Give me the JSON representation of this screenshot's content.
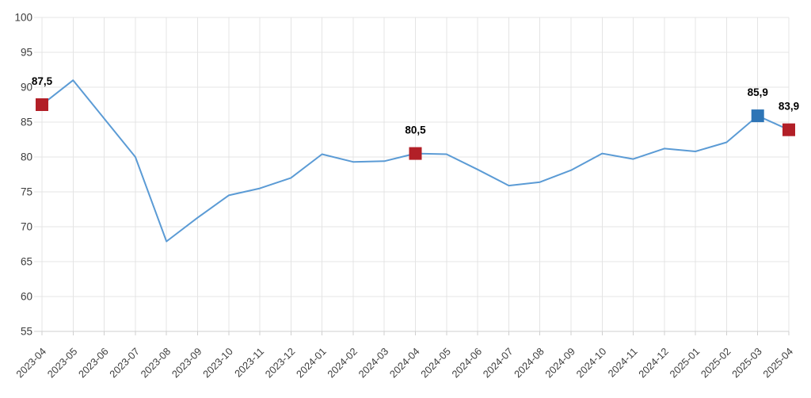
{
  "chart_data": {
    "type": "line",
    "title": "",
    "xlabel": "",
    "ylabel": "",
    "x": [
      "2023-04",
      "2023-05",
      "2023-06",
      "2023-07",
      "2023-08",
      "2023-09",
      "2023-10",
      "2023-11",
      "2023-12",
      "2024-01",
      "2024-02",
      "2024-03",
      "2024-04",
      "2024-05",
      "2024-06",
      "2024-07",
      "2024-08",
      "2024-09",
      "2024-10",
      "2024-11",
      "2024-12",
      "2025-01",
      "2025-02",
      "2025-03",
      "2025-04"
    ],
    "values": [
      87.5,
      91.0,
      85.5,
      80.0,
      67.9,
      71.3,
      74.5,
      75.5,
      77.0,
      80.4,
      79.3,
      79.4,
      80.5,
      80.4,
      78.2,
      75.9,
      76.4,
      78.1,
      80.5,
      79.7,
      81.2,
      80.8,
      82.1,
      85.9,
      83.9
    ],
    "ylim": [
      55,
      100
    ],
    "y_ticks": [
      55,
      60,
      65,
      70,
      75,
      80,
      85,
      90,
      95,
      100
    ],
    "grid": true,
    "legend": "none",
    "decimal_separator": ",",
    "line_color": "#5b9bd5",
    "grid_color": "#e4e4e4",
    "axis_color": "#cfcfcf",
    "tick_text_color": "#3d3d3d",
    "highlighted_points": [
      {
        "x": "2023-04",
        "value": 87.5,
        "label": "87,5",
        "color": "#b21f27",
        "shape": "square"
      },
      {
        "x": "2024-04",
        "value": 80.5,
        "label": "80,5",
        "color": "#b21f27",
        "shape": "square"
      },
      {
        "x": "2025-03",
        "value": 85.9,
        "label": "85,9",
        "color": "#2e75b6",
        "shape": "square"
      },
      {
        "x": "2025-04",
        "value": 83.9,
        "label": "83,9",
        "color": "#b21f27",
        "shape": "square"
      }
    ]
  }
}
